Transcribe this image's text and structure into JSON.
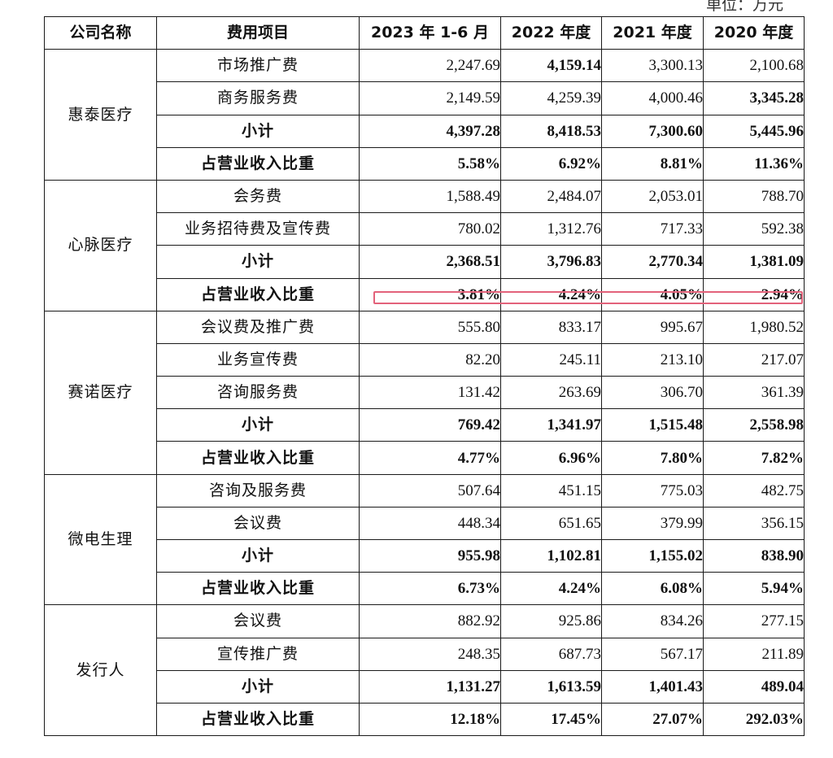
{
  "unit_label": "单位：万元",
  "headers": [
    "公司名称",
    "费用项目",
    "2023 年 1-6 月",
    "2022 年度",
    "2021 年度",
    "2020 年度"
  ],
  "groups": [
    {
      "company": "惠泰医疗",
      "rows": [
        {
          "item": "市场推广费",
          "values": [
            "2,247.69",
            "4,159.14",
            "3,300.13",
            "2,100.68"
          ],
          "bold": [
            false,
            true,
            false,
            false
          ]
        },
        {
          "item": "商务服务费",
          "values": [
            "2,149.59",
            "4,259.39",
            "4,000.46",
            "3,345.28"
          ],
          "bold": [
            false,
            false,
            false,
            true
          ]
        },
        {
          "item": "小计",
          "item_bold": true,
          "values": [
            "4,397.28",
            "8,418.53",
            "7,300.60",
            "5,445.96"
          ],
          "bold": [
            true,
            true,
            true,
            true
          ]
        },
        {
          "item": "占营业收入比重",
          "item_bold": true,
          "values": [
            "5.58%",
            "6.92%",
            "8.81%",
            "11.36%"
          ],
          "bold": [
            true,
            true,
            true,
            true
          ]
        }
      ]
    },
    {
      "company": "心脉医疗",
      "rows": [
        {
          "item": "会务费",
          "values": [
            "1,588.49",
            "2,484.07",
            "2,053.01",
            "788.70"
          ],
          "bold": [
            false,
            false,
            false,
            false
          ]
        },
        {
          "item": "业务招待费及宣传费",
          "values": [
            "780.02",
            "1,312.76",
            "717.33",
            "592.38"
          ],
          "bold": [
            false,
            false,
            false,
            false
          ]
        },
        {
          "item": "小计",
          "item_bold": true,
          "values": [
            "2,368.51",
            "3,796.83",
            "2,770.34",
            "1,381.09"
          ],
          "bold": [
            true,
            true,
            true,
            true
          ]
        },
        {
          "item": "占营业收入比重",
          "item_bold": true,
          "values": [
            "3.81%",
            "4.24%",
            "4.05%",
            "2.94%"
          ],
          "bold": [
            true,
            true,
            true,
            true
          ]
        }
      ]
    },
    {
      "company": "赛诺医疗",
      "rows": [
        {
          "item": "会议费及推广费",
          "values": [
            "555.80",
            "833.17",
            "995.67",
            "1,980.52"
          ],
          "bold": [
            false,
            false,
            false,
            false
          ]
        },
        {
          "item": "业务宣传费",
          "values": [
            "82.20",
            "245.11",
            "213.10",
            "217.07"
          ],
          "bold": [
            false,
            false,
            false,
            false
          ]
        },
        {
          "item": "咨询服务费",
          "values": [
            "131.42",
            "263.69",
            "306.70",
            "361.39"
          ],
          "bold": [
            false,
            false,
            false,
            false
          ]
        },
        {
          "item": "小计",
          "item_bold": true,
          "values": [
            "769.42",
            "1,341.97",
            "1,515.48",
            "2,558.98"
          ],
          "bold": [
            true,
            true,
            true,
            true
          ]
        },
        {
          "item": "占营业收入比重",
          "item_bold": true,
          "values": [
            "4.77%",
            "6.96%",
            "7.80%",
            "7.82%"
          ],
          "bold": [
            true,
            true,
            true,
            true
          ]
        }
      ]
    },
    {
      "company": "微电生理",
      "rows": [
        {
          "item": "咨询及服务费",
          "values": [
            "507.64",
            "451.15",
            "775.03",
            "482.75"
          ],
          "bold": [
            false,
            false,
            false,
            false
          ]
        },
        {
          "item": "会议费",
          "values": [
            "448.34",
            "651.65",
            "379.99",
            "356.15"
          ],
          "bold": [
            false,
            false,
            false,
            false
          ]
        },
        {
          "item": "小计",
          "item_bold": true,
          "values": [
            "955.98",
            "1,102.81",
            "1,155.02",
            "838.90"
          ],
          "bold": [
            true,
            true,
            true,
            true
          ]
        },
        {
          "item": "占营业收入比重",
          "item_bold": true,
          "values": [
            "6.73%",
            "4.24%",
            "6.08%",
            "5.94%"
          ],
          "bold": [
            true,
            true,
            true,
            true
          ]
        }
      ]
    },
    {
      "company": "发行人",
      "rows": [
        {
          "item": "会议费",
          "values": [
            "882.92",
            "925.86",
            "834.26",
            "277.15"
          ],
          "bold": [
            false,
            false,
            false,
            false
          ]
        },
        {
          "item": "宣传推广费",
          "values": [
            "248.35",
            "687.73",
            "567.17",
            "211.89"
          ],
          "bold": [
            false,
            false,
            false,
            false
          ]
        },
        {
          "item": "小计",
          "item_bold": true,
          "values": [
            "1,131.27",
            "1,613.59",
            "1,401.43",
            "489.04"
          ],
          "bold": [
            true,
            true,
            true,
            true
          ]
        },
        {
          "item": "占营业收入比重",
          "item_bold": true,
          "values": [
            "12.18%",
            "17.45%",
            "27.07%",
            "292.03%"
          ],
          "bold": [
            true,
            true,
            true,
            true
          ]
        }
      ]
    }
  ],
  "highlight_color": "#e3627a"
}
